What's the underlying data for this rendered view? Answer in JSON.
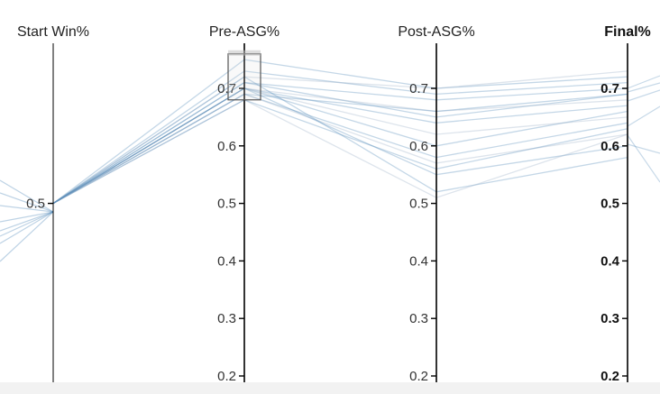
{
  "chart_data": {
    "type": "parallel-coordinates",
    "axes": [
      {
        "label": "Start Win%",
        "ticks": [
          0.5
        ],
        "tick_labels": [
          "0.5"
        ],
        "emphasis": false
      },
      {
        "label": "Pre-ASG%",
        "ticks": [
          0.7,
          0.6,
          0.5,
          0.4,
          0.3,
          0.2
        ],
        "tick_labels": [
          "0.7",
          "0.6",
          "0.5",
          "0.4",
          "0.3",
          "0.2"
        ],
        "emphasis": false
      },
      {
        "label": "Post-ASG%",
        "ticks": [
          0.7,
          0.6,
          0.5,
          0.4,
          0.3,
          0.2
        ],
        "tick_labels": [
          "0.7",
          "0.6",
          "0.5",
          "0.4",
          "0.3",
          "0.2"
        ],
        "emphasis": false
      },
      {
        "label": "Final%",
        "ticks": [
          0.7,
          0.6,
          0.5,
          0.4,
          0.3,
          0.2
        ],
        "tick_labels": [
          "0.7",
          "0.6",
          "0.5",
          "0.4",
          "0.3",
          "0.2"
        ],
        "emphasis": true
      }
    ],
    "brush": {
      "axis": "Pre-ASG%",
      "range": [
        0.68,
        0.76
      ]
    },
    "series": [
      {
        "values": [
          0.5,
          0.75,
          0.7,
          0.72
        ]
      },
      {
        "values": [
          0.5,
          0.73,
          0.69,
          0.71
        ]
      },
      {
        "values": [
          0.5,
          0.72,
          0.7,
          0.73
        ]
      },
      {
        "values": [
          0.5,
          0.71,
          0.68,
          0.7
        ]
      },
      {
        "values": [
          0.5,
          0.71,
          0.65,
          0.69
        ]
      },
      {
        "values": [
          0.5,
          0.7,
          0.66,
          0.68
        ]
      },
      {
        "values": [
          0.5,
          0.7,
          0.64,
          0.67
        ]
      },
      {
        "values": [
          0.5,
          0.7,
          0.6,
          0.66
        ]
      },
      {
        "values": [
          0.5,
          0.7,
          0.62,
          0.65
        ]
      },
      {
        "values": [
          0.5,
          0.69,
          0.66,
          0.69
        ]
      },
      {
        "values": [
          0.5,
          0.69,
          0.58,
          0.64
        ]
      },
      {
        "values": [
          0.5,
          0.69,
          0.57,
          0.62
        ]
      },
      {
        "values": [
          0.5,
          0.7,
          0.55,
          0.6
        ]
      },
      {
        "values": [
          0.5,
          0.72,
          0.52,
          0.58
        ]
      },
      {
        "values": [
          0.5,
          0.68,
          0.51,
          0.62
        ]
      },
      {
        "values": [
          0.5,
          0.68,
          0.56,
          0.63
        ]
      }
    ],
    "scale": {
      "min": 0.2,
      "max": 0.78
    },
    "colors": {
      "line": "#4682b4",
      "line_faded": "#9fb3c8",
      "axis": "#000000",
      "brush_stroke": "#555555",
      "brush_fill": "#dddddd"
    }
  }
}
